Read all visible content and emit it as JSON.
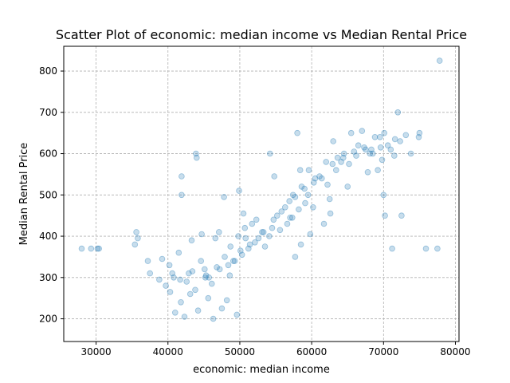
{
  "chart_data": {
    "type": "scatter",
    "title": "Scatter Plot of economic: median income vs Median Rental Price",
    "xlabel": "economic: median income",
    "ylabel": "Median Rental Price",
    "xlim": [
      25500,
      80500
    ],
    "ylim": [
      145,
      860
    ],
    "xticks": [
      30000,
      40000,
      50000,
      60000,
      70000,
      80000
    ],
    "yticks": [
      200,
      300,
      400,
      500,
      600,
      700,
      800
    ],
    "grid": true,
    "color": "#1f77b4",
    "point_opacity": 0.25,
    "points_x": [
      28000,
      29300,
      30200,
      30400,
      35400,
      35600,
      35800,
      37200,
      37500,
      38800,
      39200,
      40800,
      41900,
      41900,
      43900,
      44000,
      45100,
      45300,
      47800,
      49900,
      50500,
      50800,
      52300,
      54200,
      54800,
      57000,
      58000,
      58400,
      59500,
      60200,
      62000,
      63000,
      63600,
      64500,
      65500,
      66500,
      67000,
      68500,
      69500,
      70200,
      71200,
      72000,
      72500,
      75000,
      75900,
      77500,
      77800,
      69800,
      71500,
      60500,
      62500,
      65000,
      67800,
      68300,
      69200,
      70000,
      71000,
      72300,
      73800,
      74900,
      41000,
      41800,
      42300,
      43100,
      44200,
      45600,
      46300,
      47500,
      48200,
      49600,
      40200,
      40600,
      41500,
      42600,
      43400,
      44600,
      45700,
      46800,
      47900,
      48600,
      49300,
      50100,
      51400,
      52600,
      53300,
      54500,
      55200,
      56300,
      57700,
      58600,
      59600,
      61400,
      62900,
      64400,
      65900,
      67300,
      68800,
      70100,
      71600,
      73100,
      39700,
      40300,
      41700,
      42900,
      43800,
      45200,
      46100,
      47200,
      48400,
      49100,
      50300,
      51200,
      52100,
      53500,
      54100,
      55600,
      56600,
      57300,
      58200,
      59100,
      43300,
      44700,
      46600,
      47100,
      48700,
      49800,
      50700,
      51700,
      53100,
      54700,
      55800,
      56900,
      57400,
      59000,
      60300,
      61100,
      62200,
      63400,
      64100,
      65200,
      66200,
      67500,
      68100,
      69600,
      70600,
      57700,
      58500,
      59800,
      61700,
      62600
    ],
    "points_y": [
      370,
      370,
      370,
      370,
      380,
      410,
      395,
      340,
      310,
      295,
      345,
      300,
      500,
      545,
      600,
      590,
      320,
      305,
      495,
      510,
      455,
      395,
      440,
      600,
      545,
      445,
      650,
      560,
      500,
      470,
      580,
      630,
      590,
      600,
      650,
      620,
      655,
      600,
      640,
      450,
      370,
      700,
      450,
      650,
      370,
      370,
      825,
      585,
      595,
      540,
      490,
      520,
      555,
      610,
      560,
      500,
      610,
      630,
      600,
      640,
      215,
      240,
      205,
      260,
      220,
      250,
      200,
      225,
      245,
      210,
      330,
      310,
      360,
      290,
      315,
      340,
      300,
      325,
      350,
      305,
      340,
      365,
      380,
      395,
      410,
      420,
      450,
      470,
      495,
      520,
      560,
      540,
      575,
      590,
      605,
      615,
      640,
      650,
      635,
      645,
      280,
      265,
      295,
      310,
      270,
      300,
      285,
      320,
      330,
      340,
      355,
      370,
      385,
      375,
      400,
      415,
      430,
      445,
      465,
      480,
      390,
      405,
      395,
      410,
      375,
      400,
      420,
      430,
      410,
      440,
      460,
      485,
      500,
      515,
      530,
      545,
      525,
      560,
      580,
      575,
      595,
      610,
      600,
      615,
      620,
      350,
      380,
      405,
      430,
      455
    ]
  }
}
